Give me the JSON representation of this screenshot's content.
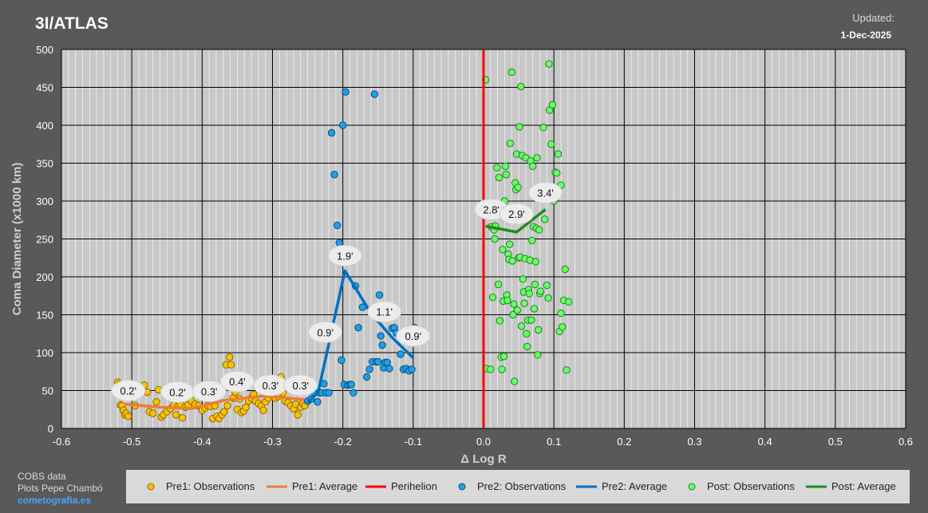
{
  "header": {
    "title": "3I/ATLAS",
    "updated_label": "Updated:",
    "updated_date": "1-Dec-2025"
  },
  "credits": {
    "line1": "COBS data",
    "line2": "Plots Pepe Chambó",
    "link": "cometografia.es"
  },
  "colors": {
    "pre1": "#ffc000",
    "pre1_avg": "#ed7d31",
    "perihelion": "#ff0000",
    "pre2": "#1ea0e8",
    "pre2_avg": "#0070c0",
    "post": "#66ff66",
    "post_avg": "#1e8c1e"
  },
  "chart_data": {
    "type": "scatter",
    "xlabel": "Δ Log R",
    "ylabel": "Coma Diameter (x1000 km)",
    "xlim": [
      -0.6,
      0.6
    ],
    "ylim": [
      0,
      500
    ],
    "x_ticks": [
      "-0.6",
      "-0.5",
      "-0.4",
      "-0.3",
      "-0.2",
      "-0.1",
      "0.0",
      "0.1",
      "0.2",
      "0.3",
      "0.4",
      "0.5",
      "0.6"
    ],
    "y_ticks": [
      "0",
      "50",
      "100",
      "150",
      "200",
      "250",
      "300",
      "350",
      "400",
      "450",
      "500"
    ],
    "grid": true,
    "legend_position": "bottom",
    "perihelion_x": 0.0,
    "series": [
      {
        "name": "Pre1: Observations",
        "kind": "points",
        "color": "#ffc000",
        "points": [
          [
            -0.52,
            61
          ],
          [
            -0.518,
            58
          ],
          [
            -0.516,
            31
          ],
          [
            -0.514,
            30
          ],
          [
            -0.512,
            24
          ],
          [
            -0.51,
            18
          ],
          [
            -0.508,
            20
          ],
          [
            -0.505,
            16
          ],
          [
            -0.495,
            30
          ],
          [
            -0.485,
            55
          ],
          [
            -0.482,
            57
          ],
          [
            -0.478,
            48
          ],
          [
            -0.475,
            22
          ],
          [
            -0.47,
            20
          ],
          [
            -0.465,
            35
          ],
          [
            -0.462,
            51
          ],
          [
            -0.458,
            15
          ],
          [
            -0.455,
            18
          ],
          [
            -0.45,
            22
          ],
          [
            -0.445,
            26
          ],
          [
            -0.44,
            31
          ],
          [
            -0.437,
            18
          ],
          [
            -0.434,
            30
          ],
          [
            -0.431,
            32
          ],
          [
            -0.428,
            14
          ],
          [
            -0.424,
            28
          ],
          [
            -0.42,
            31
          ],
          [
            -0.415,
            36
          ],
          [
            -0.41,
            32
          ],
          [
            -0.405,
            30
          ],
          [
            -0.4,
            24
          ],
          [
            -0.396,
            27
          ],
          [
            -0.392,
            30
          ],
          [
            -0.388,
            29
          ],
          [
            -0.385,
            13
          ],
          [
            -0.382,
            30
          ],
          [
            -0.379,
            16
          ],
          [
            -0.376,
            13
          ],
          [
            -0.372,
            18
          ],
          [
            -0.369,
            22
          ],
          [
            -0.366,
            84
          ],
          [
            -0.364,
            30
          ],
          [
            -0.361,
            94
          ],
          [
            -0.359,
            84
          ],
          [
            -0.356,
            40
          ],
          [
            -0.353,
            48
          ],
          [
            -0.35,
            25
          ],
          [
            -0.347,
            39
          ],
          [
            -0.344,
            21
          ],
          [
            -0.341,
            23
          ],
          [
            -0.338,
            28
          ],
          [
            -0.334,
            36
          ],
          [
            -0.33,
            40
          ],
          [
            -0.327,
            45
          ],
          [
            -0.324,
            36
          ],
          [
            -0.32,
            33
          ],
          [
            -0.316,
            30
          ],
          [
            -0.313,
            24
          ],
          [
            -0.31,
            35
          ],
          [
            -0.306,
            40
          ],
          [
            -0.303,
            45
          ],
          [
            -0.3,
            46
          ],
          [
            -0.296,
            40
          ],
          [
            -0.292,
            42
          ],
          [
            -0.288,
            68
          ],
          [
            -0.285,
            47
          ],
          [
            -0.282,
            36
          ],
          [
            -0.278,
            34
          ],
          [
            -0.274,
            30
          ],
          [
            -0.27,
            26
          ],
          [
            -0.267,
            32
          ],
          [
            -0.264,
            18
          ],
          [
            -0.26,
            28
          ],
          [
            -0.257,
            33
          ],
          [
            -0.254,
            30
          ]
        ]
      },
      {
        "name": "Pre1: Average",
        "kind": "line",
        "color": "#ed7d31",
        "points": [
          [
            -0.51,
            32
          ],
          [
            -0.46,
            28
          ],
          [
            -0.415,
            26
          ],
          [
            -0.37,
            37
          ],
          [
            -0.31,
            43
          ],
          [
            -0.255,
            38
          ]
        ]
      },
      {
        "name": "Pre2: Observations",
        "kind": "points",
        "color": "#1ea0e8",
        "points": [
          [
            -0.25,
            36
          ],
          [
            -0.245,
            39
          ],
          [
            -0.24,
            47
          ],
          [
            -0.236,
            35
          ],
          [
            -0.233,
            47
          ],
          [
            -0.23,
            47
          ],
          [
            -0.227,
            59
          ],
          [
            -0.224,
            47
          ],
          [
            -0.22,
            47
          ],
          [
            -0.216,
            390
          ],
          [
            -0.212,
            335
          ],
          [
            -0.208,
            268
          ],
          [
            -0.205,
            245
          ],
          [
            -0.202,
            90
          ],
          [
            -0.2,
            400
          ],
          [
            -0.198,
            58
          ],
          [
            -0.196,
            444
          ],
          [
            -0.193,
            57
          ],
          [
            -0.19,
            58
          ],
          [
            -0.188,
            58
          ],
          [
            -0.185,
            47
          ],
          [
            -0.182,
            188
          ],
          [
            -0.178,
            133
          ],
          [
            -0.172,
            160
          ],
          [
            -0.166,
            68
          ],
          [
            -0.162,
            78
          ],
          [
            -0.158,
            88
          ],
          [
            -0.155,
            441
          ],
          [
            -0.152,
            88
          ],
          [
            -0.15,
            88
          ],
          [
            -0.148,
            176
          ],
          [
            -0.146,
            122
          ],
          [
            -0.144,
            110
          ],
          [
            -0.142,
            80
          ],
          [
            -0.14,
            87
          ],
          [
            -0.137,
            87
          ],
          [
            -0.134,
            79
          ],
          [
            -0.13,
            132
          ],
          [
            -0.127,
            133
          ],
          [
            -0.124,
            126
          ],
          [
            -0.118,
            98
          ],
          [
            -0.114,
            78
          ],
          [
            -0.11,
            79
          ],
          [
            -0.106,
            76
          ],
          [
            -0.102,
            78
          ],
          [
            -0.098,
            133
          ]
        ]
      },
      {
        "name": "Pre2: Average",
        "kind": "line",
        "color": "#0070c0",
        "points": [
          [
            -0.25,
            34
          ],
          [
            -0.235,
            48
          ],
          [
            -0.197,
            208
          ],
          [
            -0.16,
            152
          ],
          [
            -0.13,
            120
          ],
          [
            -0.1,
            93
          ]
        ]
      },
      {
        "name": "Perihelion",
        "kind": "vline",
        "color": "#ff0000",
        "points": []
      },
      {
        "name": "Post: Observations",
        "kind": "points",
        "color": "#66ff66",
        "points": [
          [
            0.003,
            460
          ],
          [
            0.004,
            79
          ],
          [
            0.01,
            78
          ],
          [
            0.011,
            266
          ],
          [
            0.013,
            173
          ],
          [
            0.015,
            262
          ],
          [
            0.016,
            250
          ],
          [
            0.017,
            267
          ],
          [
            0.019,
            344
          ],
          [
            0.021,
            190
          ],
          [
            0.022,
            331
          ],
          [
            0.023,
            142
          ],
          [
            0.025,
            94
          ],
          [
            0.026,
            78
          ],
          [
            0.027,
            236
          ],
          [
            0.028,
            168
          ],
          [
            0.029,
            95
          ],
          [
            0.03,
            300
          ],
          [
            0.031,
            346
          ],
          [
            0.032,
            335
          ],
          [
            0.033,
            176
          ],
          [
            0.034,
            169
          ],
          [
            0.035,
            230
          ],
          [
            0.036,
            223
          ],
          [
            0.037,
            243
          ],
          [
            0.038,
            376
          ],
          [
            0.04,
            470
          ],
          [
            0.041,
            221
          ],
          [
            0.042,
            150
          ],
          [
            0.043,
            164
          ],
          [
            0.044,
            62
          ],
          [
            0.045,
            324
          ],
          [
            0.046,
            315
          ],
          [
            0.047,
            362
          ],
          [
            0.048,
            156
          ],
          [
            0.049,
            318
          ],
          [
            0.05,
            225
          ],
          [
            0.051,
            398
          ],
          [
            0.052,
            226
          ],
          [
            0.053,
            451
          ],
          [
            0.054,
            135
          ],
          [
            0.055,
            360
          ],
          [
            0.056,
            197
          ],
          [
            0.057,
            180
          ],
          [
            0.058,
            165
          ],
          [
            0.059,
            224
          ],
          [
            0.06,
            357
          ],
          [
            0.061,
            125
          ],
          [
            0.062,
            108
          ],
          [
            0.063,
            143
          ],
          [
            0.064,
            183
          ],
          [
            0.065,
            178
          ],
          [
            0.066,
            222
          ],
          [
            0.067,
            353
          ],
          [
            0.068,
            143
          ],
          [
            0.069,
            248
          ],
          [
            0.07,
            346
          ],
          [
            0.071,
            266
          ],
          [
            0.072,
            158
          ],
          [
            0.073,
            190
          ],
          [
            0.074,
            220
          ],
          [
            0.075,
            264
          ],
          [
            0.076,
            357
          ],
          [
            0.077,
            97
          ],
          [
            0.078,
            130
          ],
          [
            0.079,
            262
          ],
          [
            0.08,
            178
          ],
          [
            0.081,
            181
          ],
          [
            0.085,
            397
          ],
          [
            0.087,
            276
          ],
          [
            0.09,
            189
          ],
          [
            0.092,
            172
          ],
          [
            0.093,
            481
          ],
          [
            0.094,
            420
          ],
          [
            0.096,
            375
          ],
          [
            0.098,
            427
          ],
          [
            0.1,
            300
          ],
          [
            0.102,
            338
          ],
          [
            0.104,
            337
          ],
          [
            0.106,
            362
          ],
          [
            0.108,
            128
          ],
          [
            0.11,
            152
          ],
          [
            0.112,
            134
          ],
          [
            0.114,
            169
          ],
          [
            0.116,
            210
          ],
          [
            0.118,
            77
          ],
          [
            0.121,
            167
          ],
          [
            0.11,
            321
          ]
        ]
      },
      {
        "name": "Post: Average",
        "kind": "line",
        "color": "#1e8c1e",
        "points": [
          [
            0.003,
            267
          ],
          [
            0.047,
            259
          ],
          [
            0.088,
            289
          ]
        ]
      }
    ],
    "annotations": [
      {
        "x": -0.505,
        "y": 50,
        "text": "0.2'"
      },
      {
        "x": -0.435,
        "y": 48,
        "text": "0.2'"
      },
      {
        "x": -0.39,
        "y": 49,
        "text": "0.3'"
      },
      {
        "x": -0.35,
        "y": 62,
        "text": "0.4'"
      },
      {
        "x": -0.303,
        "y": 57,
        "text": "0.3'"
      },
      {
        "x": -0.26,
        "y": 57,
        "text": "0.3'"
      },
      {
        "x": -0.225,
        "y": 127,
        "text": "0.9'"
      },
      {
        "x": -0.197,
        "y": 228,
        "text": "1.9'"
      },
      {
        "x": -0.141,
        "y": 154,
        "text": "1.1'"
      },
      {
        "x": -0.1,
        "y": 122,
        "text": "0.9'"
      },
      {
        "x": 0.011,
        "y": 289,
        "text": "2.8'"
      },
      {
        "x": 0.047,
        "y": 283,
        "text": "2.9'"
      },
      {
        "x": 0.088,
        "y": 311,
        "text": "3.4'"
      }
    ]
  }
}
